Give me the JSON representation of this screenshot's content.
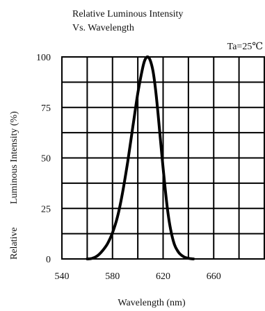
{
  "chart_data": {
    "type": "line",
    "title": "Relative Luminous Intensity",
    "subtitle": "Vs. Wavelength",
    "annotation": "Ta=25℃",
    "xlabel": "Wavelength (nm)",
    "ylabel_part1": "Relative",
    "ylabel_part2": "Luminous Intensity (%)",
    "xlim": [
      540,
      700
    ],
    "ylim": [
      0,
      100
    ],
    "x_ticks": [
      540,
      580,
      620,
      660
    ],
    "y_ticks": [
      0,
      25,
      50,
      75,
      100
    ],
    "grid": true,
    "series": [
      {
        "color": "#000000",
        "x": [
          560,
          564,
          568,
          572,
          576,
          580,
          584,
          588,
          592,
          596,
          600,
          604,
          606,
          608,
          610,
          612,
          614,
          616,
          620,
          624,
          628,
          632,
          636,
          640,
          644
        ],
        "y": [
          0,
          0.3,
          1.5,
          4,
          7.5,
          13,
          21,
          33,
          48,
          65,
          82,
          95,
          99,
          100,
          98,
          93,
          84,
          72,
          45,
          22,
          9,
          3.5,
          1.2,
          0.3,
          0
        ]
      }
    ]
  }
}
